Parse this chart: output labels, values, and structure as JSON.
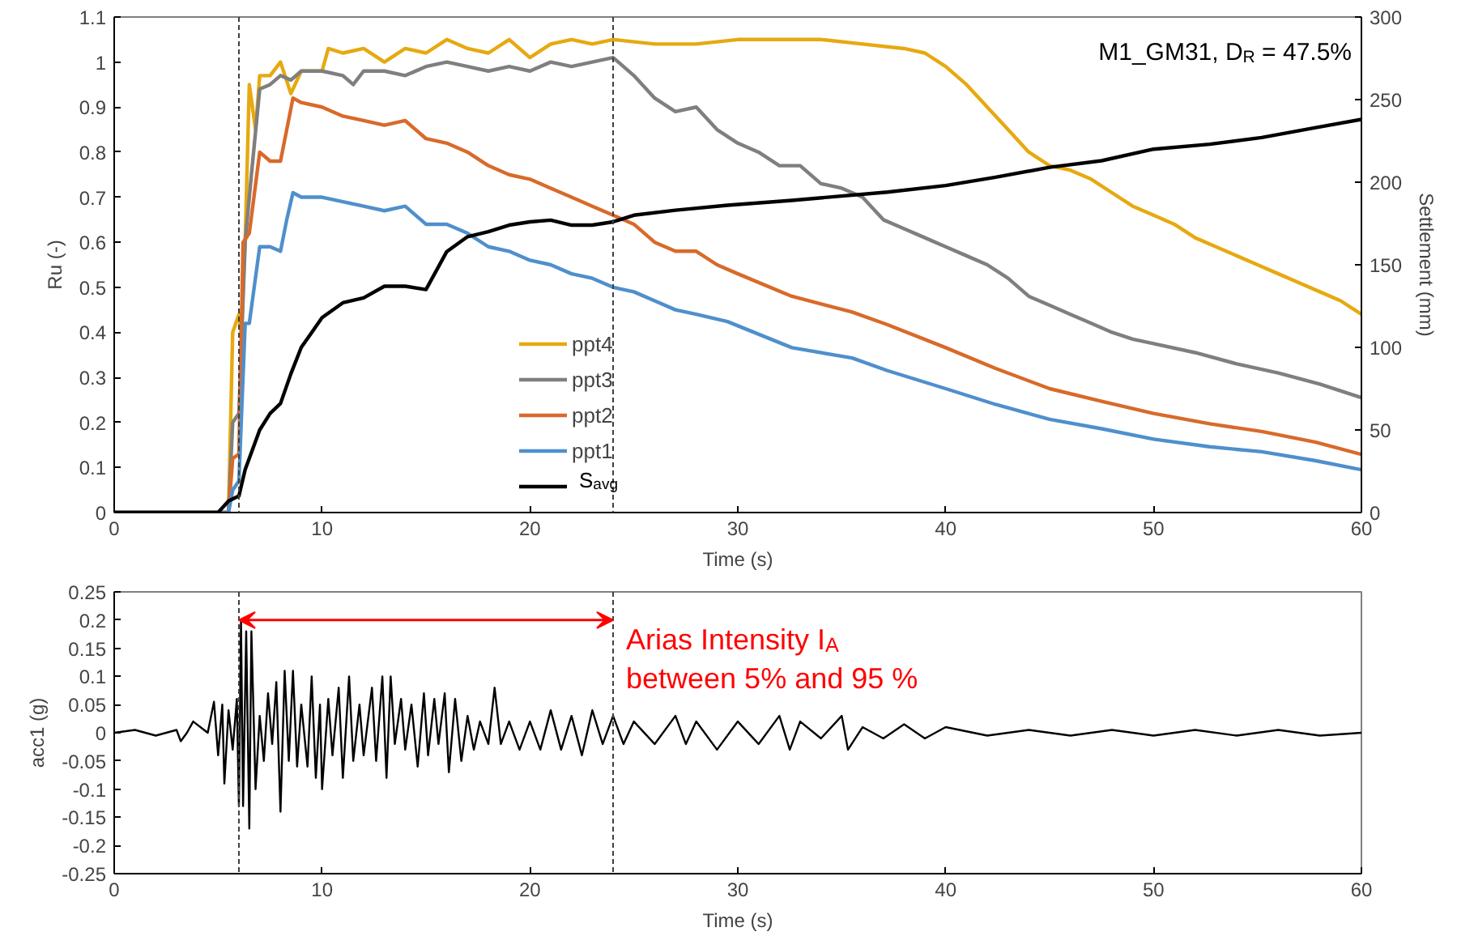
{
  "chart_data": [
    {
      "type": "line",
      "xlabel": "Time (s)",
      "ylabel": "Ru (-)",
      "y2label": "Settlement (mm)",
      "xlim": [
        0,
        60
      ],
      "xticks": [
        0,
        10,
        20,
        30,
        40,
        50,
        60
      ],
      "ylim": [
        0,
        1.1
      ],
      "yticks": [
        0,
        0.1,
        0.2,
        0.3,
        0.4,
        0.5,
        0.6,
        0.7,
        0.8,
        0.9,
        1,
        1.1
      ],
      "y2lim": [
        0,
        300
      ],
      "y2ticks": [
        0,
        50,
        100,
        150,
        200,
        250,
        300
      ],
      "grid": false,
      "legend": "bottom",
      "marker": "none",
      "line_style": "solid",
      "annotations": [
        "M1_GM31, D$_{R}$ = 47.5%"
      ],
      "ref_lines": [
        {
          "axis": "x",
          "value": 6,
          "label": null,
          "color": "#404040",
          "line_style": "dashed"
        },
        {
          "axis": "x",
          "value": 24,
          "label": null,
          "color": "#404040",
          "line_style": "dashed"
        }
      ],
      "series": [
        {
          "name": "ppt4",
          "color": "#e6a910",
          "x": [
            0,
            5,
            5.5,
            5.7,
            6.0,
            6.1,
            6.3,
            6.5,
            6.8,
            7.0,
            7.5,
            8,
            8.5,
            9,
            10,
            10.3,
            11,
            12,
            13,
            14,
            15,
            16,
            17,
            18,
            19,
            20,
            21,
            22,
            23,
            24,
            26,
            28,
            30,
            32,
            34,
            36,
            38,
            39,
            40,
            41,
            42,
            43,
            44,
            45,
            46,
            47,
            48,
            49,
            50,
            51,
            52,
            53,
            54,
            55,
            56,
            57,
            58,
            59,
            60
          ],
          "values": [
            0,
            0,
            0.0,
            0.4,
            0.44,
            0.4,
            0.6,
            0.95,
            0.85,
            0.97,
            0.97,
            1.0,
            0.93,
            0.98,
            0.98,
            1.03,
            1.02,
            1.03,
            1.0,
            1.03,
            1.02,
            1.05,
            1.03,
            1.02,
            1.05,
            1.01,
            1.04,
            1.05,
            1.04,
            1.05,
            1.04,
            1.04,
            1.05,
            1.05,
            1.05,
            1.04,
            1.03,
            1.02,
            0.99,
            0.95,
            0.9,
            0.85,
            0.8,
            0.77,
            0.76,
            0.74,
            0.71,
            0.68,
            0.66,
            0.64,
            0.61,
            0.59,
            0.57,
            0.55,
            0.53,
            0.51,
            0.49,
            0.47,
            0.44
          ]
        },
        {
          "name": "ppt3",
          "color": "#7f7f7f",
          "x": [
            0,
            5,
            5.5,
            5.7,
            6,
            6.3,
            6.6,
            7,
            7.5,
            8,
            8.5,
            9,
            10,
            11,
            11.5,
            12,
            13,
            14,
            15,
            16,
            17,
            18,
            19,
            20,
            21,
            22,
            23,
            24,
            25,
            26,
            27,
            28,
            29,
            30,
            31,
            32,
            33,
            34,
            35,
            36,
            37,
            38,
            39,
            40,
            41,
            42,
            43,
            44,
            45,
            46,
            47,
            48,
            49,
            50,
            52,
            54,
            56,
            58,
            60
          ],
          "values": [
            0,
            0,
            0.0,
            0.2,
            0.22,
            0.6,
            0.75,
            0.94,
            0.95,
            0.97,
            0.96,
            0.98,
            0.98,
            0.97,
            0.95,
            0.98,
            0.98,
            0.97,
            0.99,
            1.0,
            0.99,
            0.98,
            0.99,
            0.98,
            1.0,
            0.99,
            1.0,
            1.01,
            0.97,
            0.92,
            0.89,
            0.9,
            0.85,
            0.82,
            0.8,
            0.77,
            0.77,
            0.73,
            0.72,
            0.7,
            0.65,
            0.63,
            0.61,
            0.59,
            0.57,
            0.55,
            0.52,
            0.48,
            0.46,
            0.44,
            0.42,
            0.4,
            0.385,
            0.375,
            0.355,
            0.33,
            0.31,
            0.285,
            0.255
          ]
        },
        {
          "name": "ppt2",
          "color": "#d86a2a",
          "x": [
            0,
            5,
            5.5,
            5.7,
            6.0,
            6.2,
            6.5,
            7,
            7.5,
            8,
            8.3,
            8.6,
            9,
            10,
            11,
            12,
            13,
            14,
            15,
            16,
            17,
            18,
            19,
            20,
            21,
            22,
            23,
            24,
            25,
            26,
            27,
            28,
            29,
            30,
            32.6,
            35.5,
            37.2,
            40,
            42.4,
            45,
            47.5,
            50,
            52.7,
            55.2,
            57.8,
            60
          ],
          "values": [
            0,
            0,
            0,
            0.12,
            0.13,
            0.6,
            0.62,
            0.8,
            0.78,
            0.78,
            0.85,
            0.92,
            0.91,
            0.9,
            0.88,
            0.87,
            0.86,
            0.87,
            0.83,
            0.82,
            0.8,
            0.77,
            0.75,
            0.74,
            0.72,
            0.7,
            0.68,
            0.66,
            0.64,
            0.6,
            0.58,
            0.58,
            0.55,
            0.53,
            0.48,
            0.445,
            0.417,
            0.366,
            0.32,
            0.275,
            0.247,
            0.22,
            0.197,
            0.18,
            0.156,
            0.129
          ]
        },
        {
          "name": "ppt1",
          "color": "#4f8fcc",
          "x": [
            0,
            5,
            5.5,
            5.7,
            6.0,
            6.3,
            6.5,
            7,
            7.5,
            8,
            8.3,
            8.6,
            9,
            10,
            11,
            12,
            13,
            14,
            15,
            16,
            17,
            18,
            19,
            20,
            21,
            22,
            23,
            24,
            25,
            26,
            27,
            28,
            29.5,
            32.6,
            35.5,
            37.2,
            40,
            42.4,
            45,
            47.5,
            50,
            52.7,
            55.2,
            57.8,
            60
          ],
          "values": [
            0,
            0,
            0,
            0.05,
            0.07,
            0.42,
            0.42,
            0.59,
            0.59,
            0.58,
            0.65,
            0.71,
            0.7,
            0.7,
            0.69,
            0.68,
            0.67,
            0.68,
            0.64,
            0.64,
            0.62,
            0.59,
            0.58,
            0.56,
            0.55,
            0.53,
            0.52,
            0.5,
            0.49,
            0.47,
            0.45,
            0.44,
            0.424,
            0.366,
            0.343,
            0.315,
            0.275,
            0.24,
            0.207,
            0.186,
            0.163,
            0.146,
            0.135,
            0.115,
            0.095
          ]
        },
        {
          "name": "S$_{avg}$",
          "color": "#000000",
          "axis": "y2",
          "x": [
            0,
            5,
            5.5,
            6,
            6.3,
            7,
            7.5,
            8,
            8.5,
            9,
            9.5,
            10,
            11,
            12,
            13,
            14,
            15,
            16,
            17,
            18,
            19,
            20,
            21,
            22,
            23,
            24,
            25,
            27,
            29.5,
            32.6,
            37.2,
            40,
            42.4,
            45,
            47.5,
            50,
            52.7,
            55.2,
            57.8,
            60
          ],
          "values": [
            0,
            0,
            7,
            10,
            26,
            50,
            60,
            66,
            84,
            100,
            109,
            118,
            127,
            130,
            137,
            137,
            135,
            158,
            167,
            170,
            174,
            176,
            177,
            174,
            174,
            176,
            180,
            183,
            186,
            189,
            194,
            198,
            203,
            209,
            213,
            220,
            223,
            227,
            233,
            238
          ]
        }
      ]
    },
    {
      "type": "line",
      "xlabel": "Time (s)",
      "ylabel": "acc1 (g)",
      "xlim": [
        0,
        60
      ],
      "xticks": [
        0,
        10,
        20,
        30,
        40,
        50,
        60
      ],
      "ylim": [
        -0.25,
        0.25
      ],
      "yticks": [
        -0.25,
        -0.2,
        -0.15,
        -0.1,
        -0.05,
        0,
        0.05,
        0.1,
        0.15,
        0.2,
        0.25
      ],
      "grid": false,
      "legend": false,
      "marker": "none",
      "line_style": "solid",
      "annotations": [
        {
          "text": "Arias Intensity I$_{A}$\nbetween 5% and 95 %",
          "x": 24,
          "y": 0.2
        }
      ],
      "ref_lines": [
        {
          "axis": "x",
          "value": 6,
          "label": null,
          "color": "#404040",
          "line_style": "dashed"
        },
        {
          "axis": "x",
          "value": 24,
          "label": null,
          "color": "#404040",
          "line_style": "dashed"
        }
      ],
      "series": [
        {
          "color": "#000000",
          "x": [
            0,
            1,
            2,
            3,
            3.2,
            3.5,
            3.8,
            4.5,
            4.8,
            5.0,
            5.2,
            5.3,
            5.5,
            5.7,
            5.9,
            6.0,
            6.1,
            6.2,
            6.35,
            6.5,
            6.6,
            6.8,
            7.0,
            7.2,
            7.4,
            7.6,
            7.8,
            8.0,
            8.2,
            8.4,
            8.6,
            8.8,
            9.0,
            9.3,
            9.5,
            9.7,
            9.9,
            10.0,
            10.3,
            10.5,
            10.8,
            11.0,
            11.3,
            11.5,
            11.8,
            12.0,
            12.4,
            12.6,
            12.9,
            13.1,
            13.3,
            13.5,
            13.8,
            14.0,
            14.3,
            14.6,
            14.9,
            15.1,
            15.4,
            15.6,
            15.9,
            16.1,
            16.4,
            16.7,
            17.0,
            17.3,
            17.6,
            18.0,
            18.3,
            18.6,
            19.0,
            19.5,
            20.0,
            20.5,
            21.0,
            21.5,
            22.0,
            22.5,
            23.0,
            23.5,
            24.0,
            24.5,
            25.0,
            26.0,
            27.0,
            27.5,
            28.0,
            29.0,
            30.0,
            31.0,
            32.0,
            32.5,
            33.0,
            34.0,
            35.0,
            35.3,
            36.0,
            37.0,
            38.0,
            39.0,
            40.0,
            42,
            44,
            46,
            48,
            50,
            52,
            54,
            56,
            58,
            60
          ],
          "values": [
            0,
            0.005,
            -0.005,
            0.005,
            -0.015,
            0.0,
            0.02,
            0.0,
            0.055,
            -0.04,
            0.05,
            -0.09,
            0.04,
            -0.03,
            0.06,
            -0.13,
            0.2,
            -0.13,
            0.18,
            -0.17,
            0.18,
            -0.1,
            0.03,
            -0.05,
            0.07,
            -0.02,
            0.09,
            -0.14,
            0.11,
            -0.05,
            0.11,
            -0.06,
            0.05,
            -0.06,
            0.1,
            -0.08,
            0.05,
            -0.1,
            0.06,
            -0.04,
            0.08,
            -0.08,
            0.1,
            -0.05,
            0.05,
            -0.04,
            0.08,
            -0.05,
            0.1,
            -0.08,
            0.1,
            -0.02,
            0.06,
            -0.03,
            0.05,
            -0.06,
            0.07,
            -0.04,
            0.06,
            -0.02,
            0.07,
            -0.07,
            0.06,
            -0.05,
            0.03,
            -0.03,
            0.02,
            -0.02,
            0.08,
            -0.02,
            0.02,
            -0.03,
            0.02,
            -0.03,
            0.04,
            -0.03,
            0.03,
            -0.04,
            0.04,
            -0.02,
            0.03,
            -0.02,
            0.02,
            -0.02,
            0.03,
            -0.02,
            0.02,
            -0.03,
            0.02,
            -0.02,
            0.03,
            -0.03,
            0.02,
            -0.01,
            0.03,
            -0.03,
            0.01,
            -0.01,
            0.015,
            -0.01,
            0.01,
            -0.005,
            0.005,
            -0.005,
            0.005,
            -0.005,
            0.005,
            -0.005,
            0.005,
            -0.005,
            0.0
          ]
        }
      ]
    }
  ]
}
